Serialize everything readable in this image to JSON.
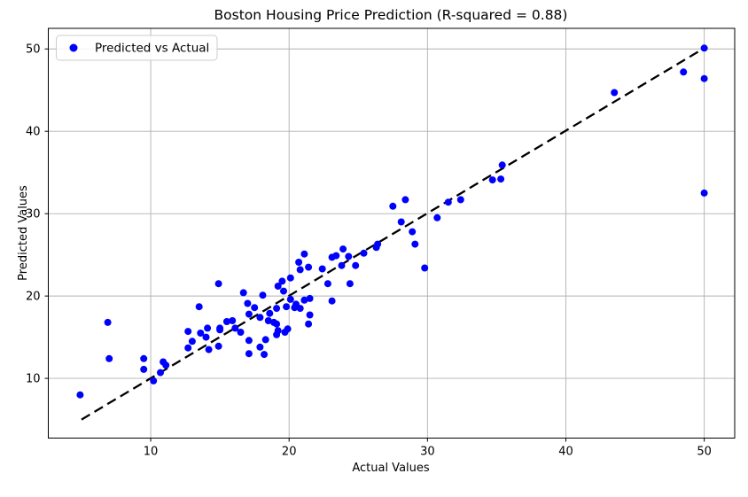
{
  "figure": {
    "background": "#ffffff"
  },
  "chart_data": {
    "type": "scatter",
    "title": "Boston Housing Price Prediction (R-squared = 0.88)",
    "xlabel": "Actual Values",
    "ylabel": "Predicted Values",
    "r_squared": "0.88",
    "legend": {
      "entries": [
        "Predicted vs Actual"
      ],
      "position": "upper left"
    },
    "grid": true,
    "xlim": [
      2.6,
      52.2
    ],
    "ylim": [
      2.75,
      52.5
    ],
    "xticks": [
      10,
      20,
      30,
      40,
      50
    ],
    "yticks": [
      10,
      20,
      30,
      40,
      50
    ],
    "marker_color": "#0000ff",
    "grid_color": "#b0b0b0",
    "spine_color": "#000000",
    "identity_line": {
      "from": [
        5,
        5
      ],
      "to": [
        50,
        50.1
      ],
      "style": "dashed",
      "color": "#000000"
    },
    "points": [
      [
        4.9,
        8.0
      ],
      [
        6.9,
        16.8
      ],
      [
        7.0,
        12.4
      ],
      [
        9.5,
        12.4
      ],
      [
        9.5,
        11.1
      ],
      [
        10.2,
        9.7
      ],
      [
        10.7,
        10.7
      ],
      [
        10.9,
        12.0
      ],
      [
        11.1,
        11.6
      ],
      [
        12.7,
        15.7
      ],
      [
        12.7,
        13.7
      ],
      [
        13.0,
        14.5
      ],
      [
        13.5,
        18.7
      ],
      [
        13.6,
        15.5
      ],
      [
        14.0,
        15.0
      ],
      [
        14.1,
        16.1
      ],
      [
        14.2,
        13.5
      ],
      [
        14.9,
        13.9
      ],
      [
        14.9,
        21.5
      ],
      [
        15.0,
        16.1
      ],
      [
        15.0,
        15.9
      ],
      [
        15.5,
        16.9
      ],
      [
        15.9,
        17.0
      ],
      [
        16.1,
        16.1
      ],
      [
        16.5,
        15.6
      ],
      [
        16.7,
        20.4
      ],
      [
        17.0,
        19.1
      ],
      [
        17.1,
        17.8
      ],
      [
        17.1,
        14.6
      ],
      [
        17.1,
        13.0
      ],
      [
        17.5,
        18.6
      ],
      [
        17.9,
        17.4
      ],
      [
        17.9,
        13.8
      ],
      [
        18.1,
        20.1
      ],
      [
        18.2,
        12.9
      ],
      [
        18.3,
        14.7
      ],
      [
        18.5,
        17.0
      ],
      [
        18.6,
        17.9
      ],
      [
        18.9,
        16.8
      ],
      [
        19.1,
        18.5
      ],
      [
        19.1,
        16.6
      ],
      [
        19.1,
        15.3
      ],
      [
        19.2,
        15.8
      ],
      [
        19.2,
        21.2
      ],
      [
        19.5,
        21.8
      ],
      [
        19.6,
        20.6
      ],
      [
        19.7,
        15.6
      ],
      [
        19.8,
        18.7
      ],
      [
        19.9,
        16.0
      ],
      [
        20.1,
        22.2
      ],
      [
        20.1,
        19.6
      ],
      [
        20.4,
        18.6
      ],
      [
        20.5,
        19.0
      ],
      [
        20.7,
        24.1
      ],
      [
        20.8,
        23.2
      ],
      [
        20.8,
        18.5
      ],
      [
        21.1,
        25.1
      ],
      [
        21.1,
        19.5
      ],
      [
        21.4,
        23.5
      ],
      [
        21.4,
        16.6
      ],
      [
        21.5,
        19.7
      ],
      [
        21.5,
        17.7
      ],
      [
        22.4,
        23.3
      ],
      [
        22.8,
        21.5
      ],
      [
        23.1,
        24.7
      ],
      [
        23.1,
        19.4
      ],
      [
        23.4,
        24.9
      ],
      [
        23.8,
        23.7
      ],
      [
        23.9,
        25.7
      ],
      [
        24.3,
        24.8
      ],
      [
        24.4,
        21.5
      ],
      [
        24.8,
        23.7
      ],
      [
        25.4,
        25.2
      ],
      [
        26.3,
        25.9
      ],
      [
        26.4,
        26.3
      ],
      [
        27.5,
        30.9
      ],
      [
        28.1,
        29.0
      ],
      [
        28.4,
        31.7
      ],
      [
        28.9,
        27.8
      ],
      [
        29.1,
        26.3
      ],
      [
        29.8,
        23.4
      ],
      [
        30.7,
        29.5
      ],
      [
        31.5,
        31.4
      ],
      [
        32.4,
        31.7
      ],
      [
        34.7,
        34.1
      ],
      [
        35.3,
        34.2
      ],
      [
        35.4,
        35.9
      ],
      [
        43.5,
        44.7
      ],
      [
        48.5,
        47.2
      ],
      [
        50.0,
        50.1
      ],
      [
        50.0,
        46.4
      ],
      [
        50.0,
        32.5
      ]
    ]
  }
}
